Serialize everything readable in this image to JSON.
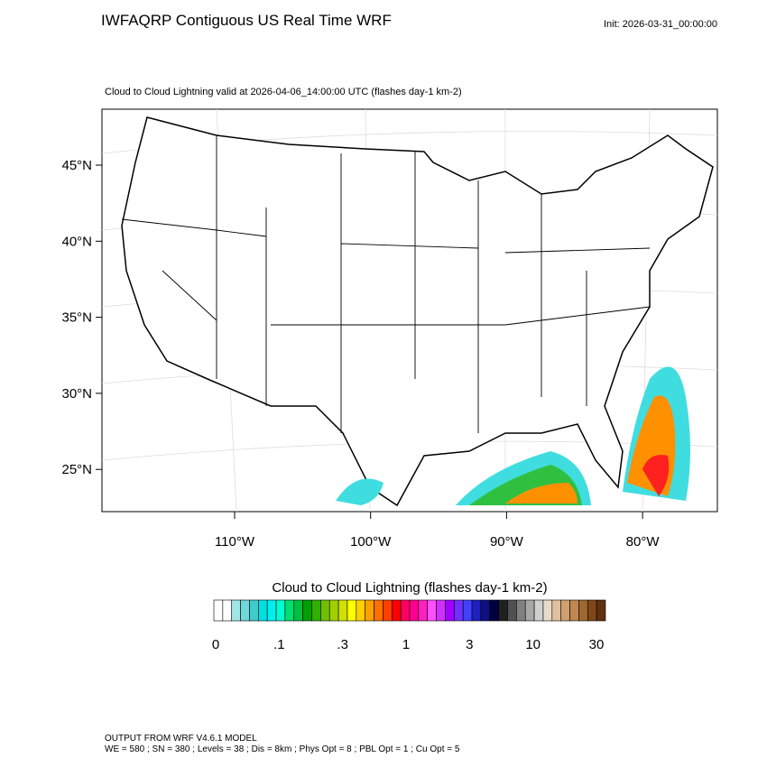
{
  "header": {
    "title": "IWFAQRP Contiguous US Real Time WRF",
    "init": "Init: 2026-03-31_00:00:00"
  },
  "map": {
    "subtitle": "Cloud to Cloud Lightning valid at 2026-04-06_14:00:00 UTC   (flashes day-1 km-2)",
    "lat_labels": [
      "45°N",
      "40°N",
      "35°N",
      "30°N",
      "25°N"
    ],
    "lon_labels": [
      "110°W",
      "100°W",
      "90°W",
      "80°W"
    ]
  },
  "colorbar": {
    "title": "Cloud to Cloud Lightning  (flashes day-1 km-2)",
    "labels": [
      "0",
      ".1",
      ".3",
      "1",
      "3",
      "10",
      "30"
    ],
    "colors": [
      "#ffffff",
      "#ffffff",
      "#a0e6e6",
      "#70d8d8",
      "#40cccc",
      "#00e0e0",
      "#00f0f0",
      "#00ffd0",
      "#00e070",
      "#00c040",
      "#00a000",
      "#30b000",
      "#70c000",
      "#a0d000",
      "#d0e000",
      "#ffff00",
      "#ffd000",
      "#ffa000",
      "#ff7000",
      "#ff4000",
      "#ff0000",
      "#ff0060",
      "#ff0090",
      "#ff20c0",
      "#ff50ff",
      "#d030ff",
      "#a000ff",
      "#7030ff",
      "#4040ff",
      "#2020c0",
      "#101080",
      "#000040",
      "#202020",
      "#505050",
      "#808080",
      "#a8a8a8",
      "#d0d0d0",
      "#e8dcc8",
      "#e0c0a0",
      "#d0a070",
      "#c08850",
      "#a06830",
      "#804818",
      "#603010"
    ]
  },
  "footer": {
    "line1": "OUTPUT FROM WRF V4.6.1 MODEL",
    "line2": "WE = 580 ; SN = 380 ; Levels = 38 ; Dis = 8km ; Phys Opt = 8 ; PBL Opt = 1 ; Cu Opt = 5"
  }
}
